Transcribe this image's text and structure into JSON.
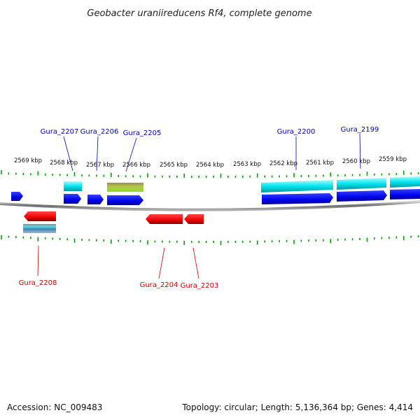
{
  "title": "Geobacter uraniireducens Rf4, complete genome",
  "footer": {
    "accession": "Accession: NC_009483",
    "info": "Topology: circular; Length: 5,136,364 bp; Genes: 4,414"
  },
  "colors": {
    "forward_label": "#0000aa",
    "reverse_label": "#cc0000",
    "tick": "#00a000",
    "backbone": "#888888",
    "cds_forward": "#0000ee",
    "cds_reverse": "#ee0000",
    "gene_cyan": "#00e5ee",
    "gene_olive": "#a3c23a"
  },
  "scale_labels": [
    {
      "id": "2569",
      "text": "2569 kbp"
    },
    {
      "id": "2568",
      "text": "2568 kbp"
    },
    {
      "id": "2567",
      "text": "2567 kbp"
    },
    {
      "id": "2566",
      "text": "2566 kbp"
    },
    {
      "id": "2565",
      "text": "2565 kbp"
    },
    {
      "id": "2564",
      "text": "2564 kbp"
    },
    {
      "id": "2563",
      "text": "2563 kbp"
    },
    {
      "id": "2562",
      "text": "2562 kbp"
    },
    {
      "id": "2561",
      "text": "2561 kbp"
    },
    {
      "id": "2560",
      "text": "2560 kbp"
    },
    {
      "id": "2559",
      "text": "2559 kbp"
    }
  ],
  "gene_labels": [
    {
      "id": "gura-2207",
      "text": "Gura_2207",
      "strand": "forward"
    },
    {
      "id": "gura-2206",
      "text": "Gura_2206",
      "strand": "forward"
    },
    {
      "id": "gura-2205",
      "text": "Gura_2205",
      "strand": "forward"
    },
    {
      "id": "gura-2200",
      "text": "Gura_2200",
      "strand": "forward"
    },
    {
      "id": "gura-2199",
      "text": "Gura_2199",
      "strand": "forward"
    },
    {
      "id": "gura-2208",
      "text": "Gura_2208",
      "strand": "reverse"
    },
    {
      "id": "gura-2204",
      "text": "Gura_2204",
      "strand": "reverse"
    },
    {
      "id": "gura-2203",
      "text": "Gura_2203",
      "strand": "reverse"
    }
  ]
}
